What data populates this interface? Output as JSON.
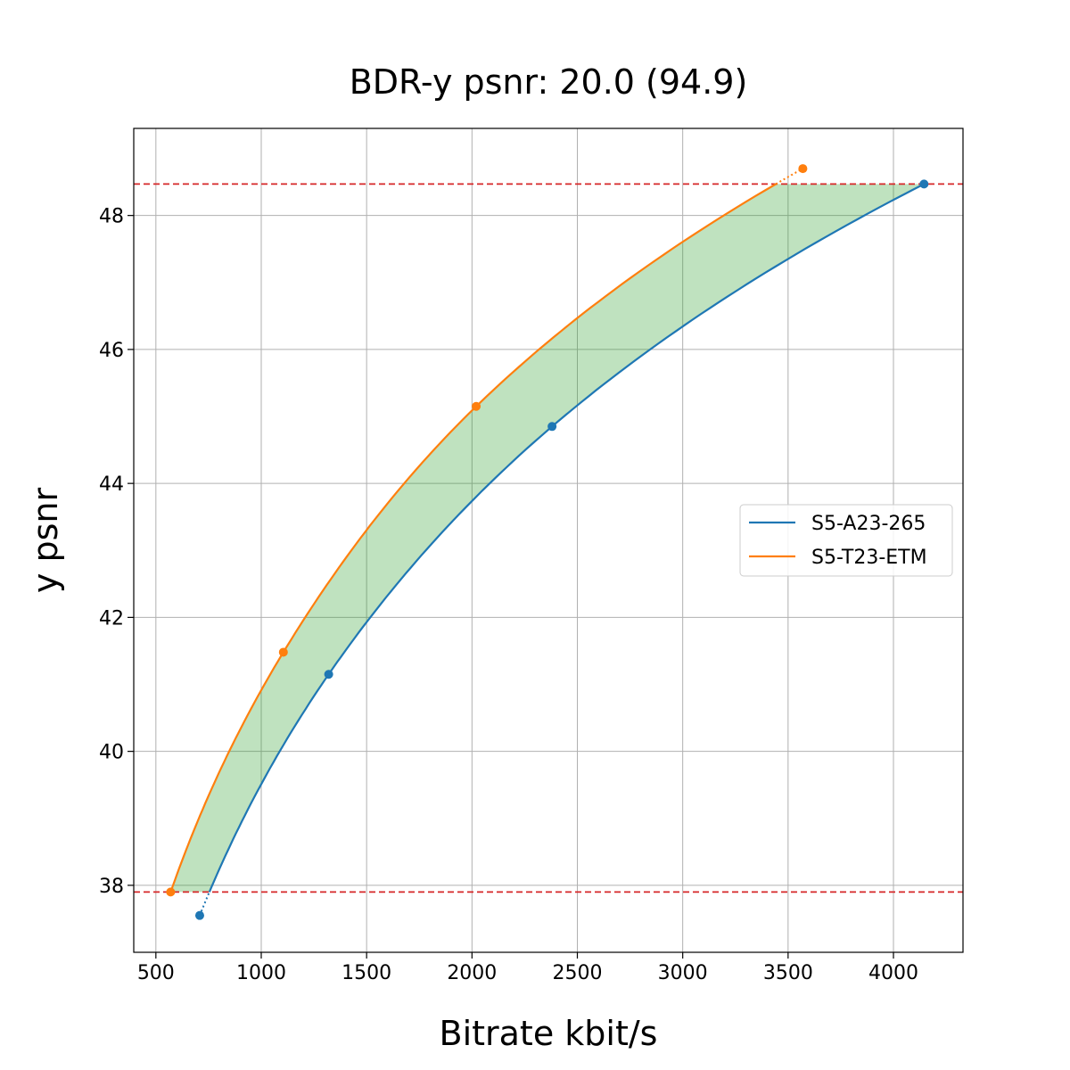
{
  "chart_data": {
    "type": "line",
    "title": "BDR-y psnr: 20.0 (94.9)",
    "xlabel": "Bitrate kbit/s",
    "ylabel": "y psnr",
    "xlim": [
      395,
      4330
    ],
    "ylim": [
      37.0,
      49.3
    ],
    "xticks": [
      500,
      1000,
      1500,
      2000,
      2500,
      3000,
      3500,
      4000
    ],
    "yticks": [
      38,
      40,
      42,
      44,
      46,
      48
    ],
    "grid": true,
    "legend_position": "center-right",
    "reference_lines": {
      "y_values": [
        37.9,
        48.47
      ],
      "color": "#d62728",
      "style": "dashed"
    },
    "fill_between": {
      "color": "#2ca02c",
      "opacity": 0.3,
      "y_range": [
        37.9,
        48.47
      ]
    },
    "series": [
      {
        "name": "S5-A23-265",
        "color": "#1f77b4",
        "points": [
          {
            "x": 708,
            "y": 37.55
          },
          {
            "x": 1320,
            "y": 41.15
          },
          {
            "x": 2380,
            "y": 44.85
          },
          {
            "x": 4145,
            "y": 48.47
          }
        ]
      },
      {
        "name": "S5-T23-ETM",
        "color": "#ff7f0e",
        "points": [
          {
            "x": 570,
            "y": 37.9
          },
          {
            "x": 1105,
            "y": 41.48
          },
          {
            "x": 2020,
            "y": 45.15
          },
          {
            "x": 3570,
            "y": 48.7
          }
        ]
      }
    ]
  }
}
